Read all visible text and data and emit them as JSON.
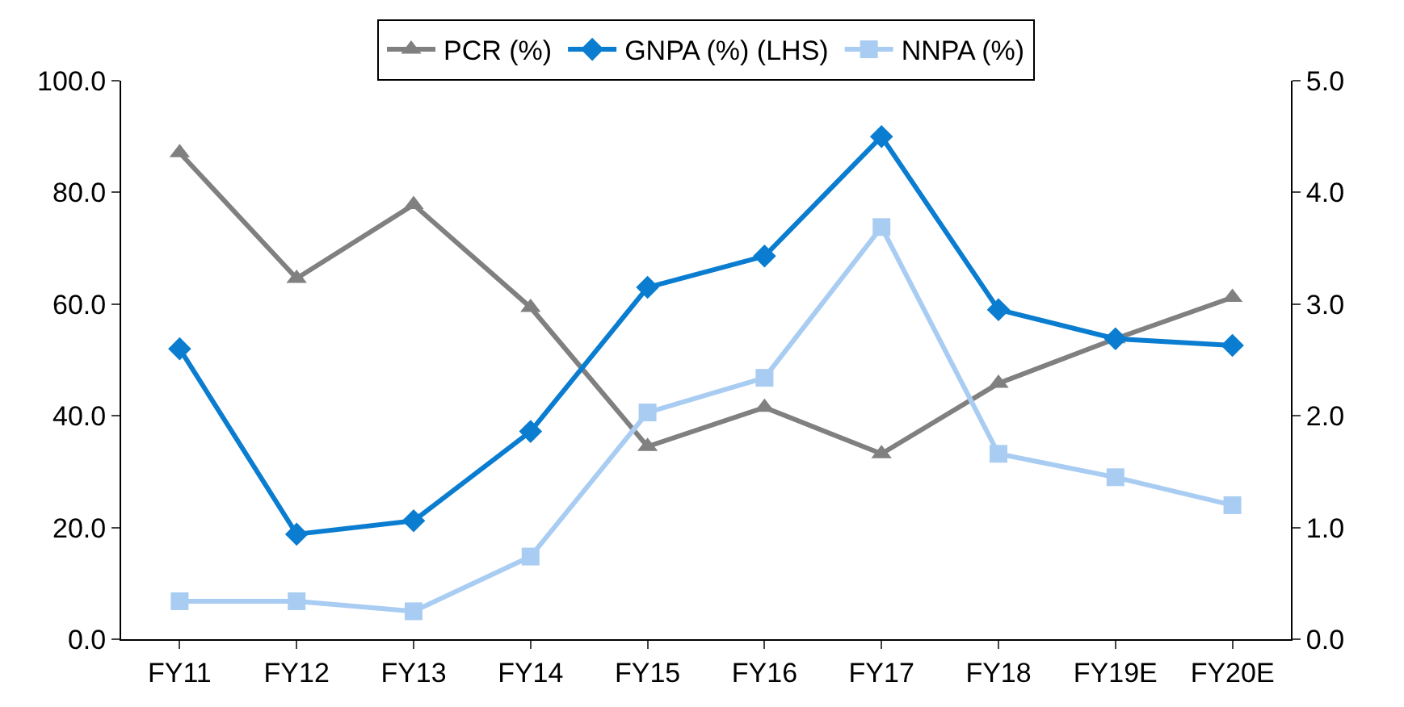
{
  "chart_data": {
    "type": "line",
    "categories": [
      "FY11",
      "FY12",
      "FY13",
      "FY14",
      "FY15",
      "FY16",
      "FY17",
      "FY18",
      "FY19E",
      "FY20E"
    ],
    "series": [
      {
        "name": "PCR (%)",
        "color": "#808080",
        "marker": "triangle",
        "values": [
          87.1,
          64.6,
          77.8,
          59.4,
          34.5,
          41.5,
          33.2,
          45.8,
          53.8,
          61.2
        ]
      },
      {
        "name": "GNPA (%) (LHS)",
        "color": "#0a7dd0",
        "marker": "diamond",
        "axis": "y2",
        "values": [
          2.6,
          0.94,
          1.06,
          1.86,
          3.15,
          3.43,
          4.5,
          2.95,
          2.69,
          2.63
        ]
      },
      {
        "name": "NNPA (%)",
        "color": "#a9cdf2",
        "marker": "square",
        "axis": "y2",
        "values": [
          0.34,
          0.34,
          0.25,
          0.74,
          2.03,
          2.34,
          3.69,
          1.66,
          1.45,
          1.2
        ]
      }
    ],
    "ylim": [
      0,
      100
    ],
    "yticks": [
      {
        "value": 0,
        "label": "0.0"
      },
      {
        "value": 20,
        "label": "20.0"
      },
      {
        "value": 40,
        "label": "40.0"
      },
      {
        "value": 60,
        "label": "60.0"
      },
      {
        "value": 80,
        "label": "80.0"
      },
      {
        "value": 100,
        "label": "100.0"
      }
    ],
    "y2lim": [
      0,
      5
    ],
    "y2ticks": [
      {
        "value": 0,
        "label": "0.0"
      },
      {
        "value": 1,
        "label": "1.0"
      },
      {
        "value": 2,
        "label": "2.0"
      },
      {
        "value": 3,
        "label": "3.0"
      },
      {
        "value": 4,
        "label": "4.0"
      },
      {
        "value": 5,
        "label": "5.0"
      }
    ],
    "legend": "top",
    "line_style": "solid"
  }
}
